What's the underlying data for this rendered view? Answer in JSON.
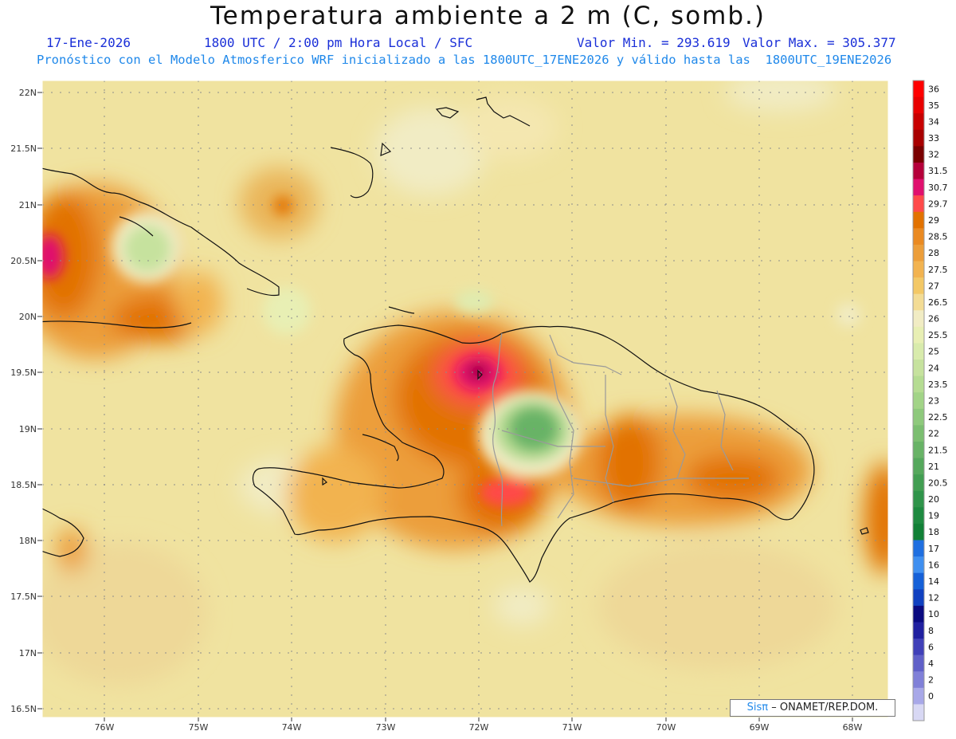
{
  "title": "Temperatura ambiente a 2 m (C, somb.)",
  "header": {
    "date": "17-Ene-2026",
    "time": "1800 UTC / 2:00 pm Hora Local / SFC",
    "vmin": "Valor Min. = 293.619",
    "vmax": "Valor Max. = 305.377",
    "forecast": "Pronóstico con el Modelo Atmosferico WRF inicializado a las 1800UTC_17ENE2026 y válido hasta las  1800UTC_19ENE2026"
  },
  "lat_labels": [
    "22N",
    "21.5N",
    "21N",
    "20.5N",
    "20N",
    "19.5N",
    "19N",
    "18.5N",
    "18N",
    "17.5N",
    "17N",
    "16.5N"
  ],
  "lon_labels": [
    "76W",
    "75W",
    "74W",
    "73W",
    "72W",
    "71W",
    "70W",
    "69W",
    "68W"
  ],
  "colorbar": {
    "labels": [
      "36",
      "35",
      "34",
      "33",
      "32",
      "31.5",
      "30.7",
      "29.7",
      "29",
      "28.5",
      "28",
      "27.5",
      "27",
      "26.5",
      "26",
      "25.5",
      "25",
      "24",
      "23.5",
      "23",
      "22.5",
      "22",
      "21.5",
      "21",
      "20.5",
      "20",
      "19",
      "18",
      "17",
      "16",
      "14",
      "12",
      "10",
      "8",
      "6",
      "4",
      "2",
      "0"
    ],
    "colors": [
      "#ff0000",
      "#e80000",
      "#c80000",
      "#a80000",
      "#7a0000",
      "#b5003a",
      "#e0106e",
      "#ff4a4a",
      "#e27200",
      "#ea8a22",
      "#ec9e3a",
      "#f2b350",
      "#f3c866",
      "#f3dc95",
      "#f1ecc4",
      "#e8efb4",
      "#d8ebac",
      "#c6e29e",
      "#b5dc92",
      "#a2d487",
      "#8ec97c",
      "#7bbe70",
      "#68b366",
      "#55a85c",
      "#429e52",
      "#2f944a",
      "#1e8a40",
      "#118036",
      "#1f6fe0",
      "#3f8ff0",
      "#1560d8",
      "#1040c0",
      "#0a0a80",
      "#2020a0",
      "#4040b8",
      "#6060c8",
      "#8080d8",
      "#a8a8e8",
      "#d8d8f4"
    ]
  },
  "credit": {
    "sis": "Sisπ",
    "text": "– ONAMET/REP.DOM."
  }
}
